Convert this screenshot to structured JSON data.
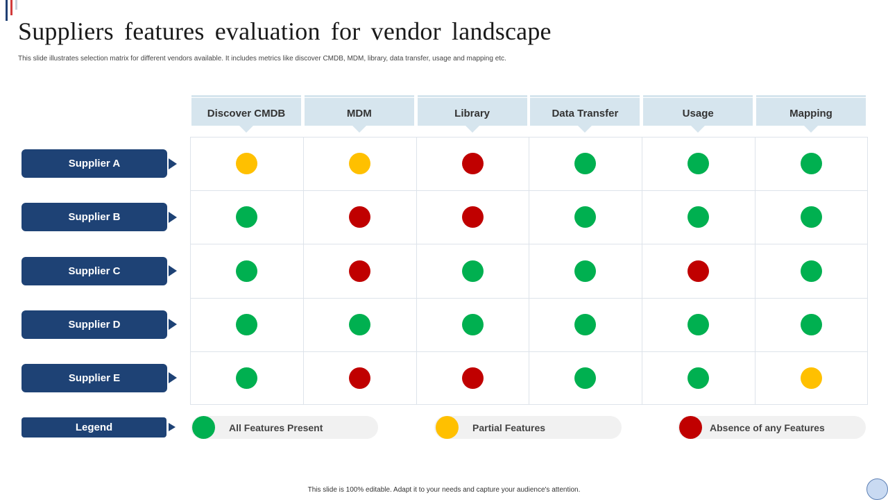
{
  "slide": {
    "title": "Suppliers features evaluation for vendor landscape",
    "subtitle": "This slide illustrates selection matrix for different vendors available. It includes metrics like discover CMDB, MDM,  library, data transfer, usage and mapping etc.",
    "footer": "This slide is 100% editable. Adapt it to your needs and capture your audience's attention."
  },
  "colors": {
    "present": "#00b050",
    "partial": "#ffc000",
    "absent": "#c00000",
    "navy": "#1e4275",
    "header_bg": "#d6e5ee"
  },
  "matrix": {
    "columns": [
      "Discover CMDB",
      "MDM",
      "Library",
      "Data Transfer",
      "Usage",
      "Mapping"
    ],
    "rows": [
      {
        "label": "Supplier A",
        "status": [
          "partial",
          "partial",
          "absent",
          "present",
          "present",
          "present"
        ]
      },
      {
        "label": "Supplier B",
        "status": [
          "present",
          "absent",
          "absent",
          "present",
          "present",
          "present"
        ]
      },
      {
        "label": "Supplier C",
        "status": [
          "present",
          "absent",
          "present",
          "present",
          "absent",
          "present"
        ]
      },
      {
        "label": "Supplier D",
        "status": [
          "present",
          "present",
          "present",
          "present",
          "present",
          "present"
        ]
      },
      {
        "label": "Supplier E",
        "status": [
          "present",
          "absent",
          "absent",
          "present",
          "present",
          "partial"
        ]
      }
    ]
  },
  "legend": {
    "label": "Legend",
    "items": [
      {
        "status": "present",
        "label": "All Features Present"
      },
      {
        "status": "partial",
        "label": "Partial Features"
      },
      {
        "status": "absent",
        "label": "Absence of any Features"
      }
    ]
  }
}
